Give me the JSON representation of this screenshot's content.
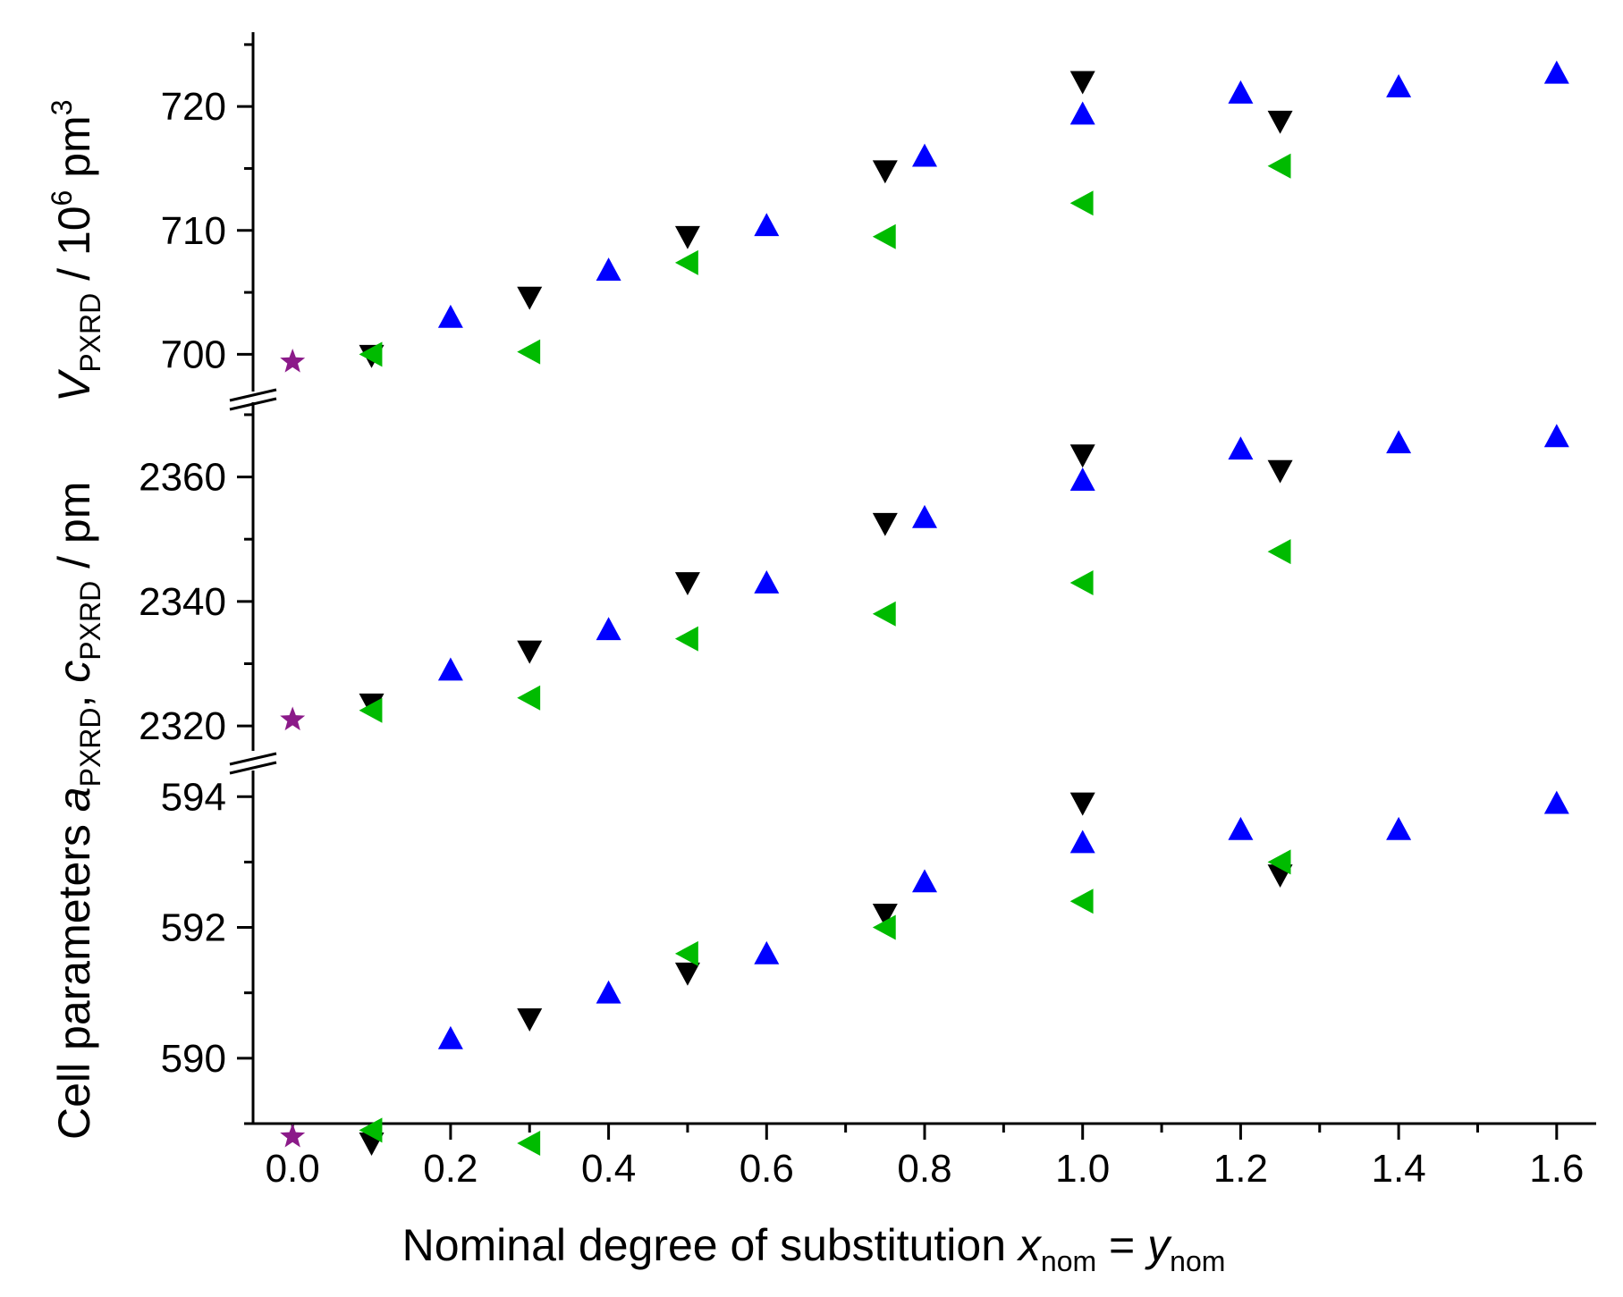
{
  "chart_data": {
    "type": "scatter",
    "title": "",
    "xlabel": {
      "main": "Nominal degree of substitution ",
      "var1": "x",
      "sub1": "nom",
      "eq": " = ",
      "var2": "y",
      "sub2": "nom"
    },
    "ylabel_lower": {
      "prefix": "Cell parameters ",
      "var_a": "a",
      "sub_a": "PXRD",
      "sep": ", ",
      "var_c": "c",
      "sub_c": "PXRD",
      "unit": " / pm"
    },
    "ylabel_upper": {
      "var": "V",
      "sub": "PXRD",
      "unit_pre": " / 10",
      "sup1": "6",
      "unit_mid": " pm",
      "sup2": "3"
    },
    "xlim": [
      -0.05,
      1.65
    ],
    "x_ticks": [
      "0.0",
      "0.2",
      "0.4",
      "0.6",
      "0.8",
      "1.0",
      "1.2",
      "1.4",
      "1.6"
    ],
    "panels": [
      {
        "name": "a",
        "ylim": [
          589.0,
          594.4
        ],
        "tick_labels": [
          "590",
          "592",
          "594"
        ],
        "tick_values": [
          590,
          592,
          594
        ],
        "minor_step": 1
      },
      {
        "name": "c",
        "ylim": [
          2316,
          2372
        ],
        "tick_labels": [
          "2320",
          "2340",
          "2360"
        ],
        "tick_values": [
          2320,
          2340,
          2360
        ],
        "minor_step": 10
      },
      {
        "name": "V",
        "ylim": [
          697,
          726
        ],
        "tick_labels": [
          "700",
          "710",
          "720"
        ],
        "tick_values": [
          700,
          710,
          720
        ],
        "minor_step": 5
      }
    ],
    "series": [
      {
        "marker": "star",
        "color": "#8B1A89",
        "points": {
          "a": [
            [
              0.0,
              588.8
            ]
          ],
          "c": [
            [
              0.0,
              2321
            ]
          ],
          "V": [
            [
              0.0,
              699.4
            ]
          ]
        }
      },
      {
        "marker": "triangle-up",
        "color": "#0000FF",
        "points": {
          "a": [
            [
              0.2,
              590.3
            ],
            [
              0.4,
              591.0
            ],
            [
              0.6,
              591.6
            ],
            [
              0.8,
              592.7
            ],
            [
              1.0,
              593.3
            ],
            [
              1.2,
              593.5
            ],
            [
              1.4,
              593.5
            ],
            [
              1.6,
              593.9
            ]
          ],
          "c": [
            [
              0.2,
              2329
            ],
            [
              0.4,
              2335.5
            ],
            [
              0.6,
              2343
            ],
            [
              0.8,
              2353.5
            ],
            [
              1.0,
              2359.5
            ],
            [
              1.2,
              2364.5
            ],
            [
              1.4,
              2365.5
            ],
            [
              1.6,
              2366.5
            ]
          ],
          "V": [
            [
              0.2,
              703.0
            ],
            [
              0.4,
              706.8
            ],
            [
              0.6,
              710.4
            ],
            [
              0.8,
              716.0
            ],
            [
              1.0,
              719.4
            ],
            [
              1.2,
              721.1
            ],
            [
              1.4,
              721.6
            ],
            [
              1.6,
              722.7
            ]
          ]
        }
      },
      {
        "marker": "triangle-down",
        "color": "#000000",
        "points": {
          "a": [
            [
              0.1,
              588.7
            ],
            [
              0.3,
              590.6
            ],
            [
              0.5,
              591.3
            ],
            [
              0.75,
              592.2
            ],
            [
              1.0,
              593.9
            ],
            [
              1.25,
              592.8
            ]
          ],
          "c": [
            [
              0.1,
              2323.5
            ],
            [
              0.3,
              2332
            ],
            [
              0.5,
              2343
            ],
            [
              0.75,
              2352.5
            ],
            [
              1.0,
              2363.5
            ],
            [
              1.25,
              2361
            ]
          ],
          "V": [
            [
              0.1,
              699.9
            ],
            [
              0.3,
              704.6
            ],
            [
              0.5,
              709.5
            ],
            [
              0.75,
              714.8
            ],
            [
              1.0,
              722.0
            ],
            [
              1.25,
              718.8
            ]
          ]
        }
      },
      {
        "marker": "triangle-left",
        "color": "#00BB00",
        "points": {
          "a": [
            [
              0.1,
              588.9
            ],
            [
              0.3,
              588.7
            ],
            [
              0.5,
              591.6
            ],
            [
              0.75,
              592.0
            ],
            [
              1.0,
              592.4
            ],
            [
              1.25,
              593.0
            ]
          ],
          "c": [
            [
              0.1,
              2322.5
            ],
            [
              0.3,
              2324.5
            ],
            [
              0.5,
              2334
            ],
            [
              0.75,
              2338
            ],
            [
              1.0,
              2343
            ],
            [
              1.25,
              2348
            ]
          ],
          "V": [
            [
              0.1,
              700.0
            ],
            [
              0.3,
              700.2
            ],
            [
              0.5,
              707.4
            ],
            [
              0.75,
              709.5
            ],
            [
              1.0,
              712.2
            ],
            [
              1.25,
              715.2
            ]
          ]
        }
      }
    ]
  }
}
